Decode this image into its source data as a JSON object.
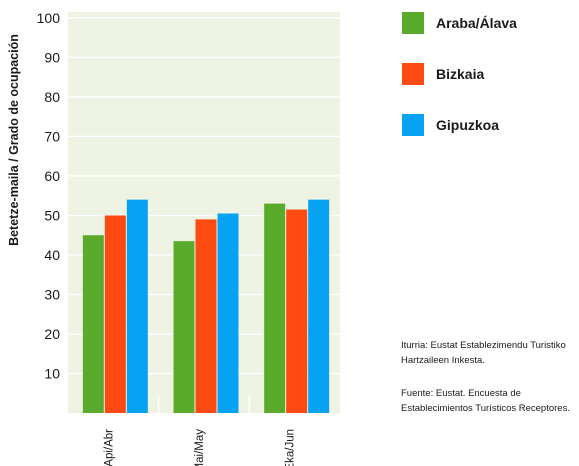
{
  "chart_data": {
    "type": "bar",
    "ylabel": "Betetze-maila / Grado de ocupación",
    "categories": [
      "Api/Abr",
      "Mai/May",
      "Eka/Jun"
    ],
    "series": [
      {
        "name": "Araba/Álava",
        "color": "#5aab2b",
        "values": [
          45,
          43.5,
          53
        ]
      },
      {
        "name": "Bizkaia",
        "color": "#fc4a12",
        "values": [
          50,
          49,
          51.5
        ]
      },
      {
        "name": "Gipuzkoa",
        "color": "#08a2f2",
        "values": [
          54,
          50.5,
          54
        ]
      }
    ],
    "yticks": [
      10,
      20,
      30,
      40,
      50,
      60,
      70,
      80,
      90,
      100
    ],
    "ylim": [
      0,
      100
    ],
    "plot_background": "#eef3e4",
    "grid": true,
    "legend_position": "right"
  },
  "notes": {
    "source_eu": "Iturria: Eustat Establezimendu Turistiko Hartzaileen Inkesta.",
    "source_es": "Fuente: Eustat. Encuesta de Establecimientos Turísticos Receptores."
  }
}
